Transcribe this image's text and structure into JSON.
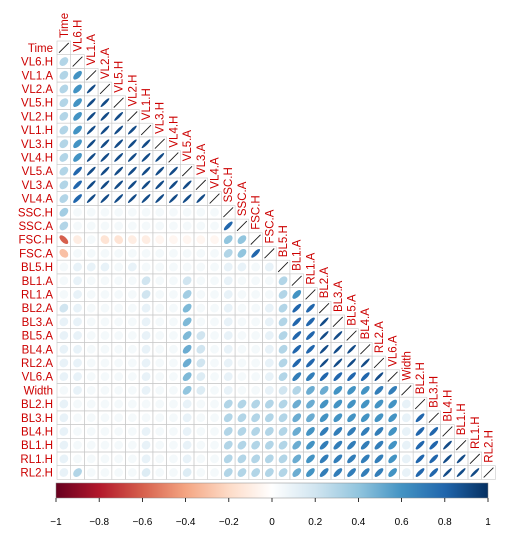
{
  "chart_data": {
    "type": "heatmap",
    "style": "lower-triangle ellipse correlation matrix",
    "variables": [
      "Time",
      "VL6.H",
      "VL1.A",
      "VL2.A",
      "VL5.H",
      "VL2.H",
      "VL1.H",
      "VL3.H",
      "VL4.H",
      "VL5.A",
      "VL3.A",
      "VL4.A",
      "SSC.H",
      "SSC.A",
      "FSC.H",
      "FSC.A",
      "BL5.H",
      "BL1.A",
      "RL1.A",
      "BL2.A",
      "BL3.A",
      "BL5.A",
      "BL4.A",
      "RL2.A",
      "VL6.A",
      "Width",
      "BL2.H",
      "BL3.H",
      "BL4.H",
      "BL1.H",
      "RL1.H",
      "RL2.H"
    ],
    "correlation_rows": [
      [
        1
      ],
      [
        0.3,
        1
      ],
      [
        0.3,
        0.6,
        1
      ],
      [
        0.3,
        0.6,
        0.9,
        1
      ],
      [
        0.3,
        0.6,
        0.9,
        0.9,
        1
      ],
      [
        0.3,
        0.6,
        0.9,
        0.9,
        0.9,
        1
      ],
      [
        0.3,
        0.6,
        0.9,
        0.9,
        0.9,
        0.9,
        1
      ],
      [
        0.3,
        0.6,
        0.9,
        0.9,
        0.9,
        0.9,
        0.9,
        1
      ],
      [
        0.3,
        0.6,
        0.9,
        0.9,
        0.9,
        0.9,
        0.9,
        0.9,
        1
      ],
      [
        0.3,
        0.8,
        0.9,
        0.9,
        0.9,
        0.9,
        0.9,
        0.9,
        0.9,
        1
      ],
      [
        0.3,
        0.8,
        0.9,
        0.9,
        0.9,
        0.9,
        0.9,
        0.9,
        0.9,
        0.9,
        1
      ],
      [
        0.3,
        0.8,
        0.9,
        0.9,
        0.9,
        0.9,
        0.9,
        0.9,
        0.9,
        0.9,
        0.9,
        1
      ],
      [
        0.35,
        0.05,
        0.05,
        0.05,
        0.05,
        0.05,
        0.05,
        0.05,
        0.05,
        0.05,
        0.05,
        0.05,
        1
      ],
      [
        0.3,
        0.05,
        0.05,
        0.05,
        0.05,
        0.05,
        0.05,
        0.05,
        0.05,
        0.05,
        0.05,
        0.05,
        0.8,
        1
      ],
      [
        -0.6,
        -0.1,
        0.05,
        -0.15,
        -0.15,
        -0.1,
        -0.1,
        -0.05,
        -0.05,
        -0.05,
        -0.05,
        -0.05,
        0.4,
        0.4,
        1
      ],
      [
        -0.3,
        0.05,
        0.05,
        0.05,
        0.05,
        0.05,
        0.05,
        0.05,
        0.05,
        0.05,
        0.05,
        0.05,
        0.3,
        0.4,
        0.8,
        1
      ],
      [
        0.05,
        0.1,
        0.1,
        0.1,
        0.05,
        0.1,
        0.05,
        0.05,
        0.05,
        0.05,
        0.05,
        0.05,
        0.1,
        0.1,
        0.05,
        0.1,
        1
      ],
      [
        0.05,
        0.1,
        0.05,
        0.05,
        0.05,
        0.05,
        0.2,
        0.05,
        0.05,
        0.2,
        0.05,
        0.05,
        0.1,
        0.05,
        0.05,
        0.05,
        0.3,
        1
      ],
      [
        0.05,
        0.1,
        0.05,
        0.05,
        0.05,
        0.05,
        0.2,
        0.05,
        0.05,
        0.35,
        0.05,
        0.05,
        0.1,
        0.05,
        0.05,
        0.05,
        0.3,
        0.6,
        1
      ],
      [
        0.2,
        0.1,
        0.05,
        0.05,
        0.05,
        0.05,
        0.1,
        0.05,
        0.05,
        0.45,
        0.05,
        0.05,
        0.1,
        0.05,
        0.05,
        0.1,
        0.3,
        0.8,
        0.8,
        1
      ],
      [
        0.1,
        0.1,
        0.05,
        0.05,
        0.05,
        0.05,
        0.1,
        0.05,
        0.05,
        0.45,
        0.05,
        0.05,
        0.1,
        0.05,
        0.05,
        0.1,
        0.3,
        0.8,
        0.8,
        0.9,
        1
      ],
      [
        0.1,
        0.1,
        0.05,
        0.05,
        0.05,
        0.05,
        0.1,
        0.05,
        0.05,
        0.45,
        0.2,
        0.05,
        0.1,
        0.05,
        0.05,
        0.1,
        0.3,
        0.8,
        0.8,
        0.9,
        0.9,
        1
      ],
      [
        0.1,
        0.1,
        0.05,
        0.05,
        0.05,
        0.05,
        0.1,
        0.05,
        0.05,
        0.5,
        0.2,
        0.05,
        0.1,
        0.05,
        0.05,
        0.1,
        0.3,
        0.8,
        0.8,
        0.9,
        0.9,
        0.9,
        1
      ],
      [
        0.1,
        0.1,
        0.05,
        0.05,
        0.05,
        0.05,
        0.1,
        0.05,
        0.05,
        0.5,
        0.2,
        0.05,
        0.1,
        0.05,
        0.05,
        0.1,
        0.3,
        0.8,
        0.8,
        0.9,
        0.9,
        0.9,
        0.9,
        1
      ],
      [
        0.1,
        0.1,
        0.05,
        0.05,
        0.05,
        0.05,
        0.1,
        0.05,
        0.05,
        0.45,
        0.15,
        0.05,
        0.1,
        0.05,
        0.05,
        0.1,
        0.3,
        0.7,
        0.7,
        0.8,
        0.8,
        0.8,
        0.8,
        0.9,
        1
      ],
      [
        0.05,
        0.1,
        0.05,
        0.05,
        0.05,
        0.05,
        0.1,
        0.05,
        0.05,
        0.4,
        0.15,
        0.05,
        0.1,
        0.05,
        0.05,
        0.1,
        0.2,
        0.3,
        0.5,
        0.5,
        0.6,
        0.6,
        0.6,
        0.7,
        0.7,
        1
      ],
      [
        0.1,
        0.05,
        0.05,
        0.05,
        0.05,
        0.05,
        0.05,
        0.05,
        0.05,
        0.1,
        0.05,
        0.05,
        0.3,
        0.3,
        0.3,
        0.3,
        0.3,
        0.5,
        0.5,
        0.6,
        0.6,
        0.6,
        0.6,
        0.6,
        0.6,
        0.1,
        1
      ],
      [
        0.1,
        0.05,
        0.05,
        0.05,
        0.05,
        0.05,
        0.05,
        0.05,
        0.05,
        0.1,
        0.05,
        0.05,
        0.3,
        0.3,
        0.3,
        0.3,
        0.3,
        0.5,
        0.5,
        0.6,
        0.6,
        0.6,
        0.6,
        0.6,
        0.6,
        0.1,
        0.8,
        1
      ],
      [
        0.1,
        0.05,
        0.05,
        0.05,
        0.05,
        0.05,
        0.1,
        0.05,
        0.05,
        0.1,
        0.05,
        0.05,
        0.3,
        0.3,
        0.3,
        0.3,
        0.3,
        0.5,
        0.6,
        0.7,
        0.7,
        0.7,
        0.7,
        0.7,
        0.6,
        0.1,
        0.8,
        0.8,
        1
      ],
      [
        0.1,
        0.05,
        0.05,
        0.05,
        0.05,
        0.05,
        0.1,
        0.05,
        0.05,
        0.1,
        0.05,
        0.05,
        0.3,
        0.3,
        0.3,
        0.3,
        0.3,
        0.5,
        0.6,
        0.7,
        0.7,
        0.7,
        0.7,
        0.7,
        0.6,
        0.1,
        0.8,
        0.8,
        0.9,
        1
      ],
      [
        0.1,
        0.05,
        0.05,
        0.05,
        0.05,
        0.05,
        0.1,
        0.05,
        0.05,
        0.1,
        0.05,
        0.05,
        0.3,
        0.3,
        0.3,
        0.3,
        0.3,
        0.5,
        0.6,
        0.7,
        0.7,
        0.7,
        0.7,
        0.7,
        0.6,
        0.1,
        0.8,
        0.8,
        0.9,
        0.9,
        1
      ],
      [
        0.1,
        0.3,
        0.05,
        0.05,
        0.05,
        0.05,
        0.15,
        0.05,
        0.05,
        0.15,
        0.05,
        0.05,
        0.3,
        0.3,
        0.3,
        0.3,
        0.3,
        0.5,
        0.6,
        0.7,
        0.7,
        0.7,
        0.7,
        0.7,
        0.6,
        0.1,
        0.8,
        0.8,
        0.9,
        0.9,
        0.9,
        1
      ]
    ],
    "colorbar": {
      "range": [
        -1,
        1
      ],
      "ticks": [
        "−1",
        "−0.8",
        "−0.6",
        "−0.4",
        "−0.2",
        "0",
        "0.2",
        "0.4",
        "0.6",
        "0.8",
        "1"
      ],
      "colors": [
        "#67001F",
        "#B2182B",
        "#D6604D",
        "#F4A582",
        "#FDDBC7",
        "#FFFFFF",
        "#D1E5F0",
        "#92C5DE",
        "#4393C3",
        "#2166AC",
        "#053061"
      ]
    },
    "label_color": "#CC0000"
  }
}
